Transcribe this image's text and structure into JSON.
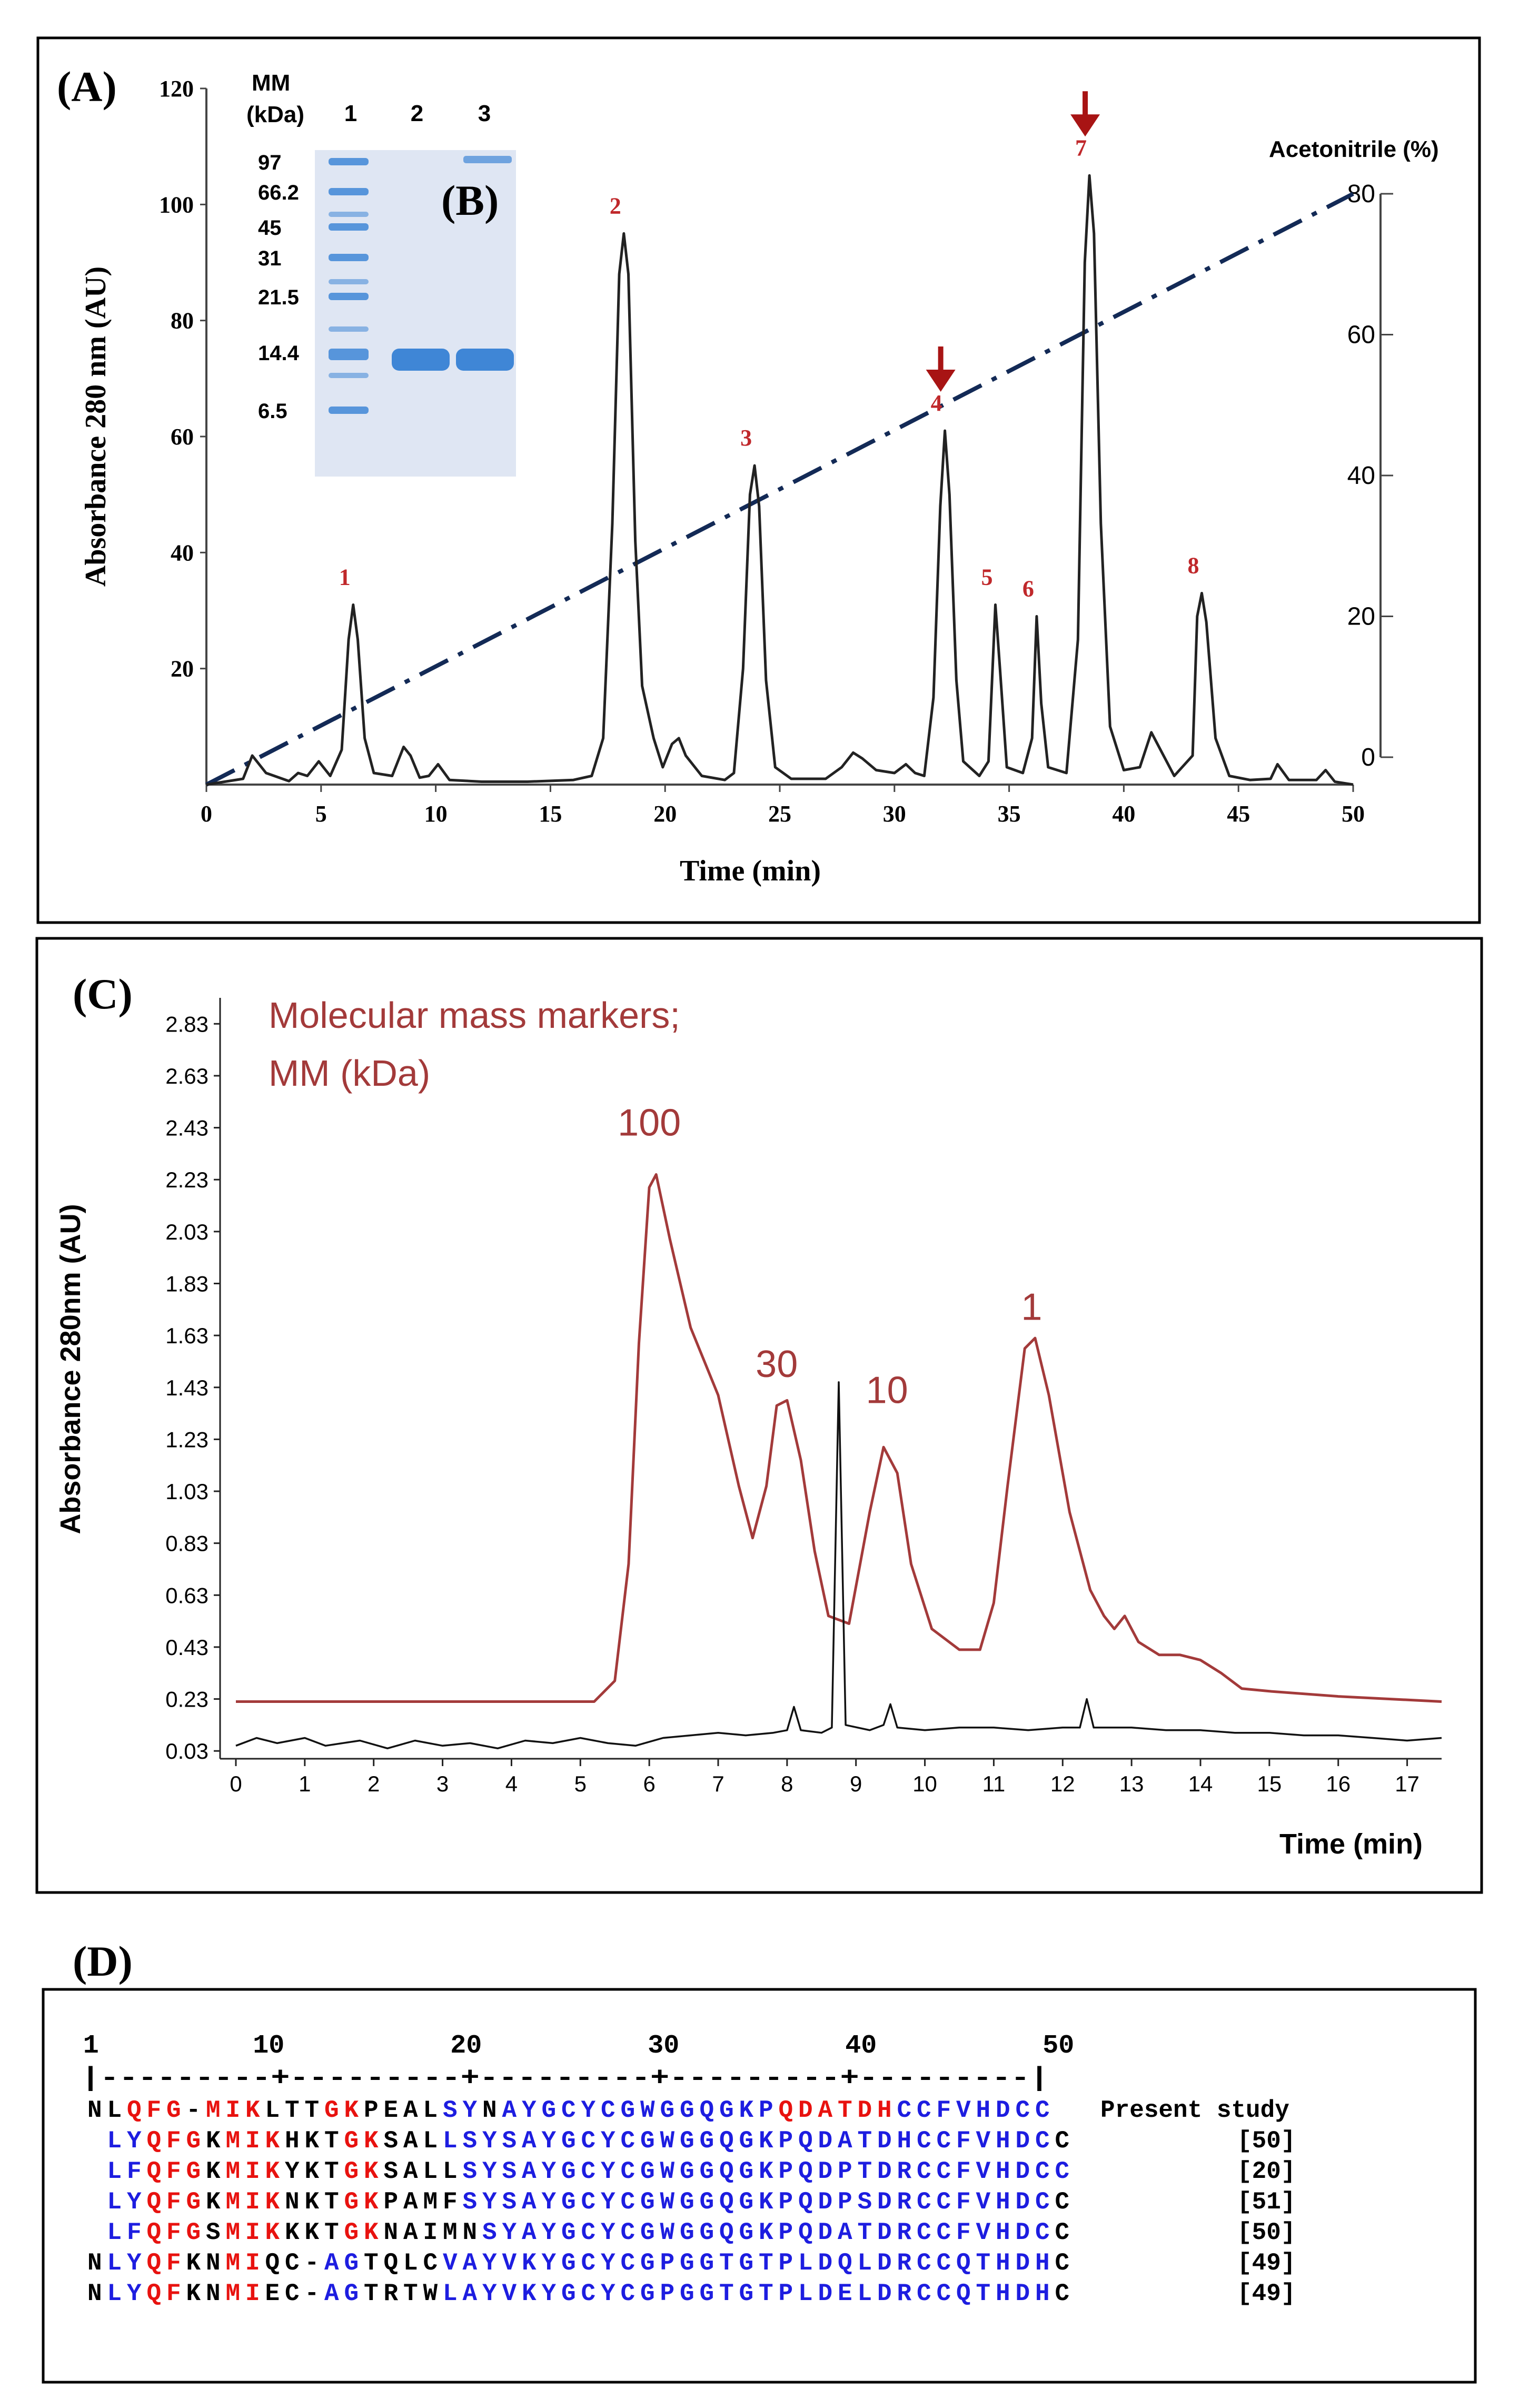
{
  "panels": {
    "A_label": "(A)",
    "B_label": "(B)",
    "C_label": "(C)",
    "D_label": "(D)"
  },
  "chart_data": [
    {
      "id": "A",
      "type": "line",
      "title": "",
      "xlabel": "Time (min)",
      "ylabel": "Absorbance 280 nm (AU)",
      "y2label": "Acetonitrile (%)",
      "xlim": [
        0,
        50
      ],
      "ylim": [
        0,
        120
      ],
      "y2lim": [
        0,
        80
      ],
      "xticks": [
        "0",
        "5",
        "10",
        "15",
        "20",
        "25",
        "30",
        "35",
        "40",
        "45",
        "50"
      ],
      "yticks": [
        "20",
        "40",
        "60",
        "80",
        "100",
        "120"
      ],
      "y2ticks": [
        "0",
        "20",
        "40",
        "60",
        "80"
      ],
      "grid": false,
      "chromatogram": [
        [
          0,
          0
        ],
        [
          1.6,
          1
        ],
        [
          2,
          5
        ],
        [
          2.6,
          2
        ],
        [
          3.6,
          0.6
        ],
        [
          4,
          2
        ],
        [
          4.4,
          1.5
        ],
        [
          4.9,
          4
        ],
        [
          5.4,
          1.5
        ],
        [
          5.9,
          6
        ],
        [
          6.2,
          25
        ],
        [
          6.4,
          31
        ],
        [
          6.6,
          25
        ],
        [
          6.9,
          8
        ],
        [
          7.3,
          2
        ],
        [
          8.1,
          1.5
        ],
        [
          8.6,
          6.5
        ],
        [
          8.9,
          5
        ],
        [
          9.3,
          1.2
        ],
        [
          9.7,
          1.5
        ],
        [
          10.1,
          3.5
        ],
        [
          10.6,
          0.8
        ],
        [
          12,
          0.5
        ],
        [
          14,
          0.5
        ],
        [
          16,
          0.8
        ],
        [
          16.8,
          1.5
        ],
        [
          17.3,
          8
        ],
        [
          17.7,
          45
        ],
        [
          18,
          88
        ],
        [
          18.2,
          95
        ],
        [
          18.4,
          88
        ],
        [
          18.7,
          42
        ],
        [
          19,
          17
        ],
        [
          19.5,
          8
        ],
        [
          19.9,
          3
        ],
        [
          20.3,
          7
        ],
        [
          20.6,
          8
        ],
        [
          20.9,
          5
        ],
        [
          21.6,
          1.5
        ],
        [
          22.6,
          0.8
        ],
        [
          23,
          2
        ],
        [
          23.4,
          20
        ],
        [
          23.7,
          50
        ],
        [
          23.9,
          55
        ],
        [
          24.1,
          48
        ],
        [
          24.4,
          18
        ],
        [
          24.8,
          3
        ],
        [
          25.5,
          1
        ],
        [
          27,
          1
        ],
        [
          27.7,
          3
        ],
        [
          28.2,
          5.5
        ],
        [
          28.6,
          4.5
        ],
        [
          29.2,
          2.5
        ],
        [
          30,
          2
        ],
        [
          30.5,
          3.5
        ],
        [
          30.9,
          2
        ],
        [
          31.3,
          1.5
        ],
        [
          31.7,
          15
        ],
        [
          32,
          48
        ],
        [
          32.2,
          61
        ],
        [
          32.4,
          50
        ],
        [
          32.7,
          18
        ],
        [
          33,
          4
        ],
        [
          33.7,
          1.5
        ],
        [
          34.1,
          4
        ],
        [
          34.4,
          31
        ],
        [
          34.6,
          20
        ],
        [
          34.9,
          3
        ],
        [
          35.6,
          2
        ],
        [
          36,
          8
        ],
        [
          36.2,
          29
        ],
        [
          36.4,
          14
        ],
        [
          36.7,
          3
        ],
        [
          37.5,
          2
        ],
        [
          38,
          25
        ],
        [
          38.3,
          90
        ],
        [
          38.5,
          105
        ],
        [
          38.7,
          95
        ],
        [
          39,
          45
        ],
        [
          39.4,
          10
        ],
        [
          40,
          2.5
        ],
        [
          40.7,
          3
        ],
        [
          41.2,
          9
        ],
        [
          41.6,
          6
        ],
        [
          42.2,
          1.5
        ],
        [
          43,
          5
        ],
        [
          43.2,
          29
        ],
        [
          43.4,
          33
        ],
        [
          43.6,
          28
        ],
        [
          44,
          8
        ],
        [
          44.6,
          1.5
        ],
        [
          45.5,
          0.8
        ],
        [
          46.4,
          1
        ],
        [
          46.7,
          3.5
        ],
        [
          47.2,
          0.8
        ],
        [
          48.4,
          0.8
        ],
        [
          48.8,
          2.5
        ],
        [
          49.2,
          0.5
        ],
        [
          50,
          0
        ]
      ],
      "gradient": {
        "x": [
          0,
          50
        ],
        "y_percent": [
          0,
          80
        ]
      },
      "peak_labels": [
        {
          "label": "1",
          "x": 6.4,
          "y": 31
        },
        {
          "label": "2",
          "x": 18.2,
          "y": 95
        },
        {
          "label": "3",
          "x": 23.9,
          "y": 55
        },
        {
          "label": "4",
          "x": 32.2,
          "y": 61
        },
        {
          "label": "5",
          "x": 34.4,
          "y": 31
        },
        {
          "label": "6",
          "x": 36.2,
          "y": 29
        },
        {
          "label": "7",
          "x": 38.5,
          "y": 105
        },
        {
          "label": "8",
          "x": 43.4,
          "y": 33
        }
      ],
      "arrows_at_peaks": [
        "4",
        "7"
      ],
      "colors": {
        "line": "#222222",
        "gradient": "#132a56",
        "label": "#c0282b",
        "arrow": "#a81414"
      }
    },
    {
      "id": "B",
      "type": "gel",
      "mm_header": "MM",
      "unit": "(kDa)",
      "lanes": [
        "1",
        "2",
        "3"
      ],
      "markers": [
        "97",
        "66.2",
        "45",
        "31",
        "21.5",
        "14.4",
        "6.5"
      ],
      "colors": {
        "band": "#3f86d6",
        "gel": "#dfe6f3"
      }
    },
    {
      "id": "C",
      "type": "line",
      "xlabel": "Time (min)",
      "ylabel": "Absorbance 280nm  (AU)",
      "xlim": [
        0,
        17.5
      ],
      "ylim": [
        0,
        2.93
      ],
      "xticks": [
        "0",
        "1",
        "2",
        "3",
        "4",
        "5",
        "6",
        "7",
        "8",
        "9",
        "10",
        "11",
        "12",
        "13",
        "14",
        "15",
        "16",
        "17"
      ],
      "yticks": [
        "0.03",
        "0.23",
        "0.43",
        "0.63",
        "0.83",
        "1.03",
        "1.23",
        "1.43",
        "1.63",
        "1.83",
        "2.03",
        "2.23",
        "2.43",
        "2.63",
        "2.83"
      ],
      "grid": false,
      "legend_text": [
        "Molecular mass markers;",
        "MM (kDa)"
      ],
      "series": [
        {
          "name": "",
          "color": "#a33a3a",
          "points": [
            [
              0,
              0.22
            ],
            [
              4.4,
              0.22
            ],
            [
              5.2,
              0.22
            ],
            [
              5.5,
              0.3
            ],
            [
              5.7,
              0.75
            ],
            [
              5.85,
              1.6
            ],
            [
              6,
              2.2
            ],
            [
              6.1,
              2.25
            ],
            [
              6.3,
              2.0
            ],
            [
              6.6,
              1.66
            ],
            [
              7,
              1.4
            ],
            [
              7.3,
              1.05
            ],
            [
              7.5,
              0.85
            ],
            [
              7.7,
              1.05
            ],
            [
              7.85,
              1.36
            ],
            [
              8,
              1.38
            ],
            [
              8.2,
              1.15
            ],
            [
              8.4,
              0.8
            ],
            [
              8.6,
              0.55
            ],
            [
              8.9,
              0.52
            ],
            [
              9.2,
              0.95
            ],
            [
              9.4,
              1.2
            ],
            [
              9.6,
              1.1
            ],
            [
              9.8,
              0.75
            ],
            [
              10.1,
              0.5
            ],
            [
              10.5,
              0.42
            ],
            [
              10.8,
              0.42
            ],
            [
              11,
              0.6
            ],
            [
              11.2,
              1.05
            ],
            [
              11.45,
              1.58
            ],
            [
              11.6,
              1.62
            ],
            [
              11.8,
              1.4
            ],
            [
              12.1,
              0.95
            ],
            [
              12.4,
              0.65
            ],
            [
              12.6,
              0.55
            ],
            [
              12.75,
              0.5
            ],
            [
              12.9,
              0.55
            ],
            [
              13.1,
              0.45
            ],
            [
              13.4,
              0.4
            ],
            [
              13.7,
              0.4
            ],
            [
              14,
              0.38
            ],
            [
              14.3,
              0.33
            ],
            [
              14.6,
              0.27
            ],
            [
              15,
              0.26
            ],
            [
              16,
              0.24
            ],
            [
              17.5,
              0.22
            ]
          ]
        },
        {
          "name": "",
          "color": "#111111",
          "points": [
            [
              0,
              0.05
            ],
            [
              0.3,
              0.08
            ],
            [
              0.6,
              0.06
            ],
            [
              1,
              0.08
            ],
            [
              1.3,
              0.05
            ],
            [
              1.8,
              0.07
            ],
            [
              2.2,
              0.04
            ],
            [
              2.6,
              0.07
            ],
            [
              3,
              0.05
            ],
            [
              3.4,
              0.06
            ],
            [
              3.8,
              0.04
            ],
            [
              4.2,
              0.07
            ],
            [
              4.6,
              0.06
            ],
            [
              5,
              0.08
            ],
            [
              5.4,
              0.06
            ],
            [
              5.8,
              0.05
            ],
            [
              6.2,
              0.08
            ],
            [
              6.6,
              0.09
            ],
            [
              7,
              0.1
            ],
            [
              7.4,
              0.09
            ],
            [
              7.8,
              0.1
            ],
            [
              8,
              0.11
            ],
            [
              8.1,
              0.2
            ],
            [
              8.2,
              0.11
            ],
            [
              8.5,
              0.1
            ],
            [
              8.65,
              0.12
            ],
            [
              8.75,
              1.45
            ],
            [
              8.85,
              0.13
            ],
            [
              9.2,
              0.11
            ],
            [
              9.4,
              0.13
            ],
            [
              9.5,
              0.21
            ],
            [
              9.6,
              0.12
            ],
            [
              10,
              0.11
            ],
            [
              10.5,
              0.12
            ],
            [
              11,
              0.12
            ],
            [
              11.5,
              0.11
            ],
            [
              12,
              0.12
            ],
            [
              12.25,
              0.12
            ],
            [
              12.35,
              0.23
            ],
            [
              12.45,
              0.12
            ],
            [
              13,
              0.12
            ],
            [
              13.5,
              0.11
            ],
            [
              14,
              0.11
            ],
            [
              14.5,
              0.1
            ],
            [
              15,
              0.1
            ],
            [
              15.5,
              0.09
            ],
            [
              16,
              0.09
            ],
            [
              16.5,
              0.08
            ],
            [
              17,
              0.07
            ],
            [
              17.5,
              0.08
            ]
          ]
        }
      ],
      "annotations": [
        {
          "text": "100",
          "x": 6.0,
          "y": 2.4
        },
        {
          "text": "30",
          "x": 7.85,
          "y": 1.47
        },
        {
          "text": "10",
          "x": 9.45,
          "y": 1.37
        },
        {
          "text": "1",
          "x": 11.55,
          "y": 1.69
        }
      ]
    }
  ],
  "alignment": {
    "ruler_numbers": [
      "1",
      "10",
      "20",
      "30",
      "40",
      "50"
    ],
    "ruler_line": "|---------+---------+---------+---------+---------|",
    "colors": {
      "red": "#e8120f",
      "blue": "#1d1de0",
      "black": "#000000"
    },
    "rows": [
      {
        "seq": "NLQFG-MIKLTTGKPEALSYNAYGCYCGWGGQGKPQDATDHCCFVHDCC",
        "colors": "kkrrrkrrrkkkrrkkkkbbkbbbbbbbbbbbbbbrrrrrrbbbbbbbb",
        "ref": "Present  study"
      },
      {
        "seq": " LYQFGKMIKHKTGKSALLSYSAYGCYCGWGGQGKPQDATDHCCFVHDCC",
        "colors": "kbbrrrkrrrkkkrrkkkbbbbbbbbbbbbbbbbbbbbbbbbbbbbbbb",
        "ref": "[50]"
      },
      {
        "seq": " LFQFGKMIKYKTGKSALLSYSAYGCYCGWGGQGKPQDPTDRCCFVHDCC",
        "colors": "kbbrrrkrrrkkkrrkkkkbbbbbbbbbbbbbbbbbbbbbbbbbbbbbbb",
        "ref": "[20]"
      },
      {
        "seq": " LYQFGKMIKNKTGKPAMFSYSAYGCYCGWGGQGKPQDPSDRCCFVHDCC",
        "colors": "kbbrrrkrrrkkkrrkkkkbbbbbbbbbbbbbbbbbbbbbbbbbbbbbb",
        "ref": "[51]"
      },
      {
        "seq": " LFQFGSMIKKKTGKNAIMNSYAYGCYCGWGGQGKPQDATDRCCFVHDCC",
        "colors": "kbbrrrkrrrkkkrrkkkkkbbbbbbbbbbbbbbbbbbbbbbbbbbbbb",
        "ref": "[50]"
      },
      {
        "seq": "NLYQFKNMIQC-AGTQLCVAYVKYGCYCGPGGTGTPLDQLDRCCQTHDHC",
        "colors": "kbbrrkkrrkkkbbkkkkbbbbbbbbbbbbbbbbbbbbbbbbbbbbbbb",
        "ref": "[49]"
      },
      {
        "seq": "NLYQFKNMIEC-AGTRTWLAYVKYGCYCGPGGTGTPLDELDRCCQTHDHC",
        "colors": "kbbrrkkrrkkkbbkkkkbbbbbbbbbbbbbbbbbbbbbbbbbbbbbbb",
        "ref": "[49]"
      }
    ]
  }
}
